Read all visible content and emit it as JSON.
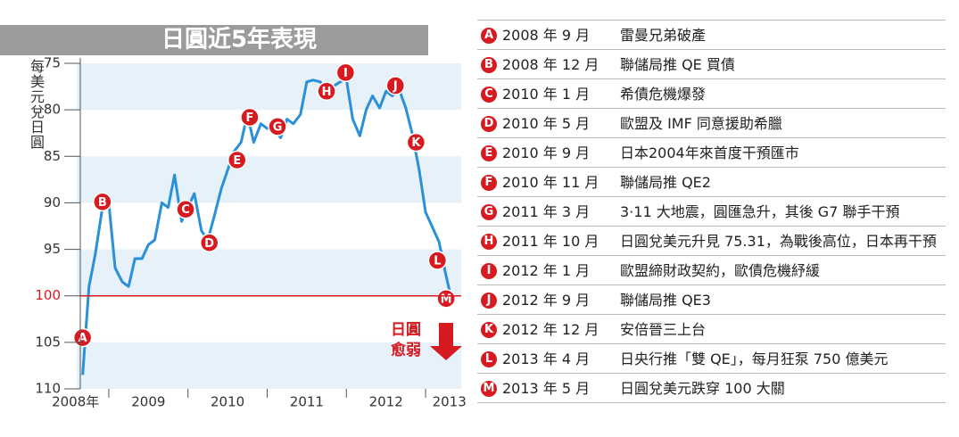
{
  "chart_data": {
    "type": "line",
    "title": "日圓近5年表現",
    "y_label": "每美元兌日圓",
    "x": [
      2008.67,
      2008.75,
      2008.83,
      2008.92,
      2009.0,
      2009.08,
      2009.17,
      2009.25,
      2009.33,
      2009.42,
      2009.5,
      2009.58,
      2009.67,
      2009.75,
      2009.83,
      2009.92,
      2010.0,
      2010.08,
      2010.17,
      2010.25,
      2010.33,
      2010.42,
      2010.5,
      2010.58,
      2010.67,
      2010.75,
      2010.83,
      2010.92,
      2011.0,
      2011.08,
      2011.17,
      2011.25,
      2011.33,
      2011.42,
      2011.5,
      2011.58,
      2011.67,
      2011.75,
      2011.83,
      2011.92,
      2012.0,
      2012.08,
      2012.17,
      2012.25,
      2012.33,
      2012.42,
      2012.5,
      2012.58,
      2012.67,
      2012.75,
      2012.83,
      2012.92,
      2013.0,
      2013.08,
      2013.17,
      2013.25,
      2013.33
    ],
    "series": [
      {
        "color": "#2a90d8",
        "values": [
          108.5,
          99,
          95.5,
          90.5,
          90,
          97,
          98.5,
          99,
          96,
          96,
          94.5,
          94,
          90,
          90.5,
          87,
          92,
          90.5,
          89,
          93,
          94,
          91.5,
          88.5,
          86.5,
          84.5,
          83.5,
          80.5,
          83.5,
          81.5,
          82,
          82,
          83,
          81,
          81.5,
          80.5,
          77,
          76.8,
          77,
          78,
          77.5,
          77,
          76.7,
          81,
          82.8,
          80,
          78.5,
          79.8,
          78,
          78.5,
          77.9,
          79.8,
          82.5,
          86.5,
          91,
          92.5,
          94.2,
          97.5,
          100.5
        ]
      }
    ],
    "xlim": [
      2008.55,
      2013.45
    ],
    "xticks": [
      {
        "value": 2008.58,
        "label": "2008年"
      },
      {
        "value": 2009.5,
        "label": "2009"
      },
      {
        "value": 2010.5,
        "label": "2010"
      },
      {
        "value": 2011.5,
        "label": "2011"
      },
      {
        "value": 2012.5,
        "label": "2012"
      },
      {
        "value": 2013.3,
        "label": "2013"
      }
    ],
    "x_boundaries": [
      2009,
      2010,
      2011,
      2012,
      2013
    ],
    "ylim": [
      110,
      75
    ],
    "yticks": [
      75,
      80,
      85,
      90,
      95,
      100,
      105,
      110
    ],
    "reference_line": {
      "value": 100,
      "color": "#d71920"
    },
    "annotation": [
      "日圓",
      "愈弱"
    ],
    "events": [
      {
        "letter": "A",
        "x": 2008.67,
        "y": 104.5,
        "date": "2008 年 9 月",
        "text": "雷曼兄弟破產"
      },
      {
        "letter": "B",
        "x": 2008.92,
        "y": 89.9,
        "date": "2008 年 12 月",
        "text": "聯儲局推 QE 買債"
      },
      {
        "letter": "C",
        "x": 2009.97,
        "y": 90.7,
        "date": "2010 年 1 月",
        "text": "希債危機爆發"
      },
      {
        "letter": "D",
        "x": 2010.27,
        "y": 94.3,
        "date": "2010 年 5 月",
        "text": "歐盟及 IMF 同意援助希臘"
      },
      {
        "letter": "E",
        "x": 2010.62,
        "y": 85.4,
        "date": "2010 年 9 月",
        "text": "日本2004年來首度干預匯市"
      },
      {
        "letter": "F",
        "x": 2010.78,
        "y": 80.8,
        "date": "2010 年 11 月",
        "text": "聯儲局推 QE2"
      },
      {
        "letter": "G",
        "x": 2011.13,
        "y": 81.8,
        "date": "2011 年 3 月",
        "text": "3·11 大地震，圓匯急升，其後 G7 聯手干預"
      },
      {
        "letter": "H",
        "x": 2011.75,
        "y": 78.0,
        "date": "2011 年 10 月",
        "text": "日圓兌美元升見 75.31，為戰後高位，日本再干預"
      },
      {
        "letter": "I",
        "x": 2011.99,
        "y": 76.0,
        "date": "2012 年 1 月",
        "text": "歐盟締財政契約，歐債危機紓緩"
      },
      {
        "letter": "J",
        "x": 2012.62,
        "y": 77.4,
        "date": "2012 年 9 月",
        "text": "聯儲局推 QE3"
      },
      {
        "letter": "K",
        "x": 2012.88,
        "y": 83.5,
        "date": "2012 年 12 月",
        "text": "安倍晉三上台"
      },
      {
        "letter": "L",
        "x": 2013.15,
        "y": 96.2,
        "date": "2013 年 4 月",
        "text": "日央行推「雙 QE」，每月狂泵 750 億美元"
      },
      {
        "letter": "M",
        "x": 2013.26,
        "y": 100.3,
        "date": "2013 年 5 月",
        "text": "日圓兌美元跌穿 100 大關"
      }
    ]
  }
}
